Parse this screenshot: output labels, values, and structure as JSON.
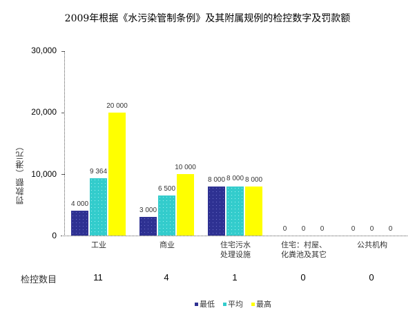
{
  "chart_data": {
    "type": "bar",
    "title": "2009年根据《水污染管制条例》及其附属规例的检控数字及罚款额",
    "xlabel": "",
    "ylabel": "罚款额（港元）",
    "ylim": [
      0,
      30000
    ],
    "yticks": [
      "30,000",
      "20,000",
      "10,000",
      "0"
    ],
    "categories": [
      "工业",
      "商业",
      "住宅污水处理设施",
      "住宅：村屋、化粪池及其它",
      "公共机构"
    ],
    "category_lines": [
      [
        "工业"
      ],
      [
        "商业"
      ],
      [
        "住宅污水",
        "处理设施"
      ],
      [
        "住宅：村屋、",
        "化粪池及其它"
      ],
      [
        "公共机构"
      ]
    ],
    "series": [
      {
        "name": "最低",
        "color": "#2e3192",
        "values": [
          4000,
          3000,
          8000,
          0,
          0
        ],
        "labels": [
          "4 000",
          "3 000",
          "8 000",
          "0",
          "0"
        ]
      },
      {
        "name": "平均",
        "color": "#33cccc",
        "values": [
          9364,
          6500,
          8000,
          0,
          0
        ],
        "labels": [
          "9 364",
          "6 500",
          "8 000",
          "0",
          "0"
        ]
      },
      {
        "name": "最高",
        "color": "#ffff00",
        "values": [
          20000,
          10000,
          8000,
          0,
          0
        ],
        "labels": [
          "20 000",
          "10 000",
          "8 000",
          "0",
          "0"
        ]
      }
    ],
    "prosecutions": {
      "label": "检控数目",
      "values": [
        "11",
        "4",
        "1",
        "0",
        "0"
      ]
    },
    "grid": false,
    "legend_position": "bottom"
  }
}
